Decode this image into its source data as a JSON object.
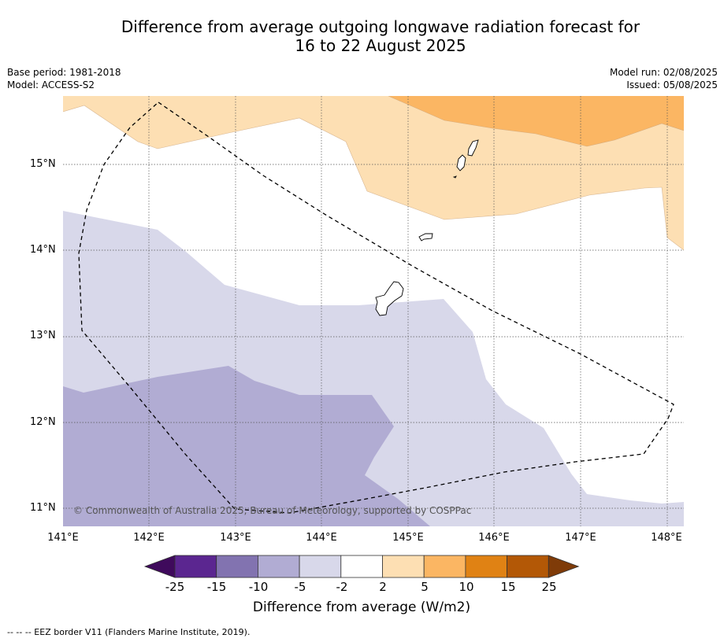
{
  "header": {
    "title_line1": "Difference from average outgoing longwave radiation forecast for",
    "title_line2": "16 to 22 August 2025",
    "base_period": "Base period: 1981-2018",
    "model": "Model: ACCESS-S2",
    "model_run": "Model run: 02/08/2025",
    "issued": "Issued: 05/08/2025"
  },
  "map": {
    "lat_labels": [
      "15°N",
      "14°N",
      "13°N",
      "12°N",
      "11°N"
    ],
    "lon_labels": [
      "141°E",
      "142°E",
      "143°E",
      "144°E",
      "145°E",
      "146°E",
      "147°E",
      "148°E"
    ],
    "copyright": "© Commonwealth of Australia 2025, Bureau of Meteorology, supported by COSPPac"
  },
  "colorbar": {
    "labels": [
      "-25",
      "-15",
      "-10",
      "-5",
      "-2",
      "2",
      "5",
      "10",
      "15",
      "25"
    ],
    "colors": [
      "#3f0a5c",
      "#5b2690",
      "#8273b0",
      "#b1acd3",
      "#d8d8ea",
      "#ffffff",
      "#fddfb3",
      "#fbb663",
      "#e08214",
      "#b35806",
      "#7f3b08"
    ],
    "title": "Difference from average (W/m2)"
  },
  "footer": {
    "eez_note": "--  --  -- EEZ border V11 (Flanders Marine Institute, 2019)."
  }
}
